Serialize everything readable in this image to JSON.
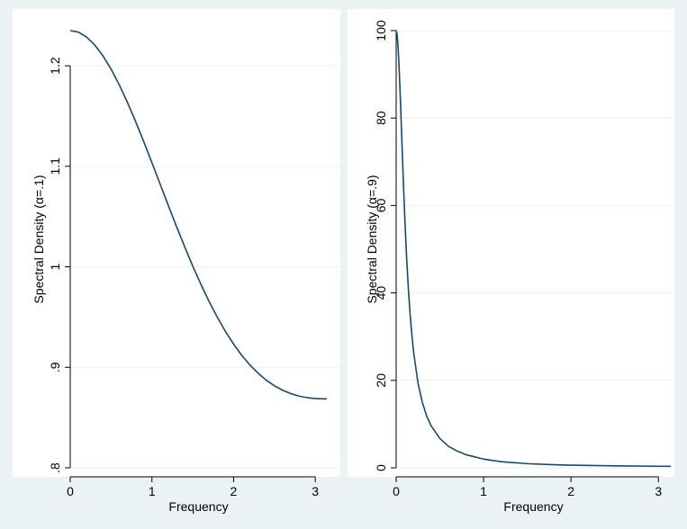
{
  "colors": {
    "outer_background": "#eaf2f3",
    "plot_background": "#ffffff",
    "line": "#1a476f",
    "grid": "#eaf2f3",
    "axis": "#000000"
  },
  "chart_data": [
    {
      "type": "line",
      "title": "",
      "xlabel": "Frequency",
      "ylabel": "Spectral Density (α=.1)",
      "xlim": [
        0,
        3.14159
      ],
      "ylim": [
        0.8,
        1.235
      ],
      "xticks": [
        0,
        1,
        2,
        3
      ],
      "xtick_labels": [
        "0",
        "1",
        "2",
        "3"
      ],
      "yticks": [
        0.8,
        0.9,
        1.0,
        1.1,
        1.2
      ],
      "ytick_labels": [
        ".8",
        ".9",
        "1",
        "1.1",
        "1.2"
      ],
      "grid": true,
      "legend": "none",
      "series": [
        {
          "x": [
            0,
            0.1,
            0.2,
            0.3,
            0.4,
            0.5,
            0.6,
            0.7,
            0.8,
            0.9,
            1.0,
            1.1,
            1.2,
            1.3,
            1.4,
            1.5,
            1.6,
            1.7,
            1.8,
            1.9,
            2.0,
            2.1,
            2.2,
            2.3,
            2.4,
            2.5,
            2.6,
            2.7,
            2.8,
            2.9,
            3.0,
            3.1,
            3.14159
          ],
          "y": [
            1.235,
            1.2335,
            1.2286,
            1.2207,
            1.21,
            1.1967,
            1.1811,
            1.1636,
            1.1446,
            1.1245,
            1.1036,
            1.0824,
            1.0612,
            1.0403,
            1.0201,
            1.0007,
            0.9825,
            0.9655,
            0.9499,
            0.9357,
            0.9231,
            0.9119,
            0.9023,
            0.8941,
            0.8872,
            0.8816,
            0.8772,
            0.8738,
            0.8714,
            0.8698,
            0.869,
            0.8686,
            0.8686
          ]
        }
      ]
    },
    {
      "type": "line",
      "title": "",
      "xlabel": "Frequency",
      "ylabel": "Spectral Density (α=.9)",
      "xlim": [
        0,
        3.14159
      ],
      "ylim": [
        0,
        100
      ],
      "xticks": [
        0,
        1,
        2,
        3
      ],
      "xtick_labels": [
        "0",
        "1",
        "2",
        "3"
      ],
      "yticks": [
        0,
        20,
        40,
        60,
        80,
        100
      ],
      "ytick_labels": [
        "0",
        "20",
        "40",
        "60",
        "80",
        "100"
      ],
      "grid": true,
      "legend": "none",
      "series": [
        {
          "x": [
            0,
            0.01,
            0.02,
            0.03,
            0.04,
            0.05,
            0.06,
            0.07,
            0.08,
            0.09,
            0.1,
            0.12,
            0.14,
            0.16,
            0.18,
            0.2,
            0.25,
            0.3,
            0.35,
            0.4,
            0.5,
            0.6,
            0.7,
            0.8,
            1.0,
            1.2,
            1.5,
            1.8,
            2.0,
            2.5,
            3.0,
            3.14159
          ],
          "y": [
            100,
            99.2,
            96.8,
            93.1,
            88.5,
            83.3,
            77.7,
            72.1,
            66.6,
            61.4,
            56.5,
            47.9,
            40.8,
            35.0,
            30.3,
            26.4,
            19.3,
            14.9,
            11.8,
            9.6,
            6.7,
            4.9,
            3.8,
            3.0,
            2.0,
            1.4,
            0.95,
            0.7,
            0.6,
            0.45,
            0.36,
            0.35
          ]
        }
      ]
    }
  ]
}
